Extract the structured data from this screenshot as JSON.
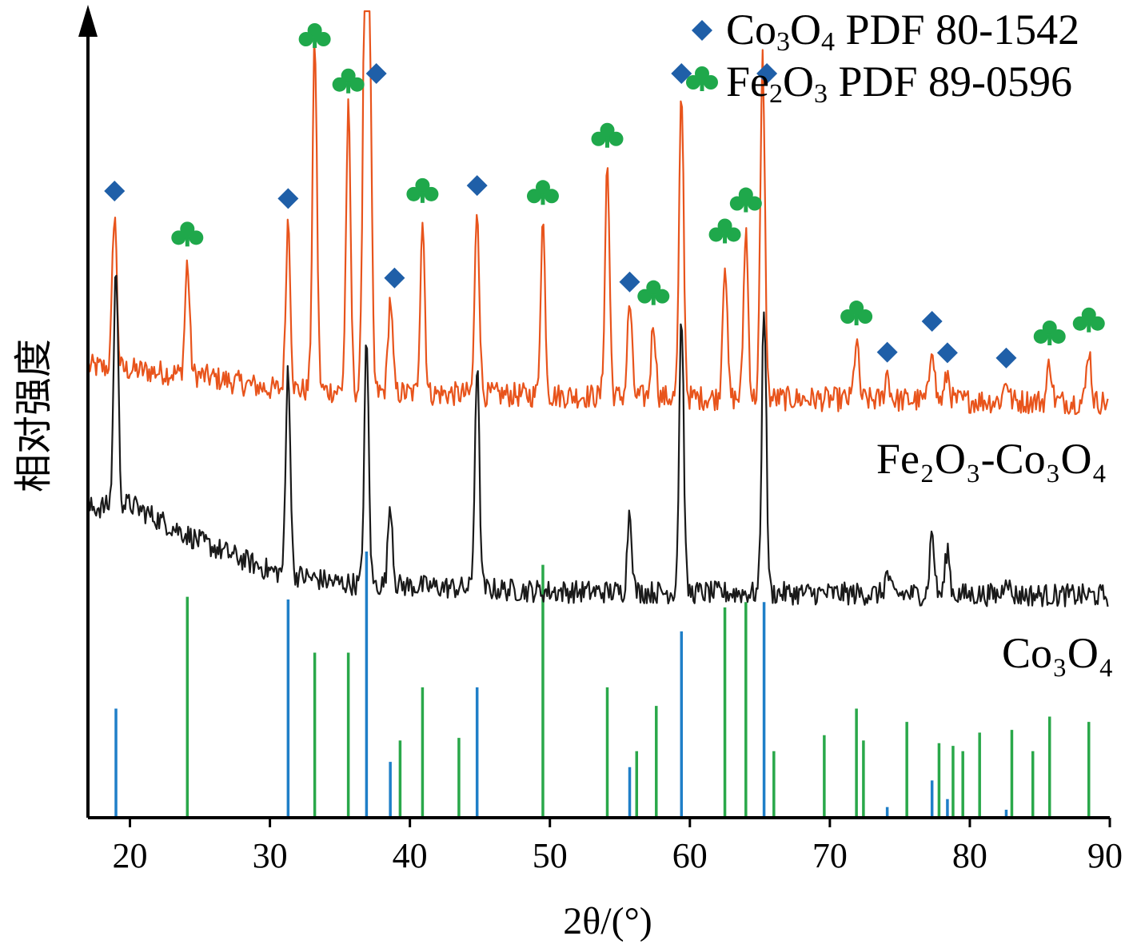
{
  "chart_data": {
    "type": "line",
    "xlabel": "2θ/(°)",
    "ylabel": "相对强度",
    "xlim": [
      17,
      90
    ],
    "xticks": [
      20,
      30,
      40,
      50,
      60,
      70,
      80,
      90
    ],
    "grid": false,
    "legend_position": "top-right",
    "legend": [
      {
        "marker": "diamond",
        "color": "#1f5fa8",
        "name": "Co3O4 PDF 80-1542"
      },
      {
        "marker": "club",
        "color": "#1fa84b",
        "name": "Fe2O3 PDF 89-0596"
      }
    ],
    "series": [
      {
        "name": "Fe2O3-Co3O4",
        "color": "#e8541c",
        "baseline": 0.3,
        "background": [
          [
            17,
            0.36
          ],
          [
            25,
            0.34
          ],
          [
            30,
            0.31
          ],
          [
            40,
            0.3
          ],
          [
            60,
            0.29
          ],
          [
            90,
            0.28
          ]
        ],
        "peaks": [
          [
            18.9,
            0.35
          ],
          [
            24.1,
            0.25
          ],
          [
            31.3,
            0.38
          ],
          [
            33.2,
            0.78
          ],
          [
            35.6,
            0.63
          ],
          [
            36.8,
            1.0
          ],
          [
            37.1,
            0.8
          ],
          [
            38.6,
            0.21
          ],
          [
            40.9,
            0.39
          ],
          [
            44.8,
            0.42
          ],
          [
            49.5,
            0.39
          ],
          [
            54.1,
            0.52
          ],
          [
            55.7,
            0.21
          ],
          [
            57.4,
            0.17
          ],
          [
            59.4,
            0.68
          ],
          [
            62.5,
            0.31
          ],
          [
            64.0,
            0.38
          ],
          [
            65.2,
            0.76
          ],
          [
            71.9,
            0.13
          ],
          [
            74.1,
            0.06
          ],
          [
            77.3,
            0.13
          ],
          [
            78.4,
            0.06
          ],
          [
            82.6,
            0.05
          ],
          [
            85.7,
            0.09
          ],
          [
            88.5,
            0.12
          ]
        ],
        "label": "Fe₂O₃-Co₃O₄"
      },
      {
        "name": "Co3O4",
        "color": "#1a1a1a",
        "baseline": 0.0,
        "background": [
          [
            17,
            0.2
          ],
          [
            20,
            0.21
          ],
          [
            25,
            0.12
          ],
          [
            30,
            0.05
          ],
          [
            35,
            0.02
          ],
          [
            50,
            0.0
          ],
          [
            90,
            -0.01
          ]
        ],
        "peaks": [
          [
            19.0,
            0.58
          ],
          [
            31.3,
            0.5
          ],
          [
            36.9,
            0.58
          ],
          [
            38.6,
            0.2
          ],
          [
            44.8,
            0.54
          ],
          [
            55.7,
            0.2
          ],
          [
            59.4,
            0.67
          ],
          [
            65.3,
            0.7
          ],
          [
            74.1,
            0.05
          ],
          [
            77.3,
            0.15
          ],
          [
            78.4,
            0.11
          ],
          [
            82.6,
            0.05
          ]
        ],
        "label": "Co₃O₄"
      }
    ],
    "reference": {
      "Co3O4_PDF_80-1542": {
        "color": "#1f7fc8",
        "lines": [
          [
            19.0,
            0.41
          ],
          [
            31.3,
            0.82
          ],
          [
            36.9,
            1.0
          ],
          [
            38.6,
            0.21
          ],
          [
            44.8,
            0.49
          ],
          [
            55.7,
            0.19
          ],
          [
            59.4,
            0.7
          ],
          [
            65.3,
            0.81
          ],
          [
            74.1,
            0.04
          ],
          [
            77.3,
            0.14
          ],
          [
            78.4,
            0.07
          ],
          [
            82.6,
            0.03
          ]
        ]
      },
      "Fe2O3_PDF_89-0596": {
        "color": "#2aa84a",
        "lines": [
          [
            24.1,
            0.83
          ],
          [
            33.2,
            0.62
          ],
          [
            35.6,
            0.62
          ],
          [
            39.3,
            0.29
          ],
          [
            40.9,
            0.49
          ],
          [
            43.5,
            0.3
          ],
          [
            49.5,
            0.95
          ],
          [
            54.1,
            0.49
          ],
          [
            56.2,
            0.25
          ],
          [
            57.6,
            0.42
          ],
          [
            62.5,
            0.79
          ],
          [
            64.0,
            0.81
          ],
          [
            66.0,
            0.25
          ],
          [
            69.6,
            0.31
          ],
          [
            71.9,
            0.41
          ],
          [
            72.4,
            0.29
          ],
          [
            75.5,
            0.36
          ],
          [
            77.8,
            0.28
          ],
          [
            78.8,
            0.27
          ],
          [
            79.5,
            0.25
          ],
          [
            80.7,
            0.32
          ],
          [
            83.0,
            0.33
          ],
          [
            84.5,
            0.25
          ],
          [
            85.7,
            0.38
          ],
          [
            88.5,
            0.36
          ]
        ]
      }
    },
    "markers": {
      "diamond": [
        18.9,
        31.3,
        37.6,
        38.9,
        44.8,
        55.7,
        59.4,
        65.5,
        74.1,
        77.3,
        78.4,
        82.6
      ],
      "club": [
        24.1,
        33.2,
        35.6,
        40.9,
        49.5,
        54.1,
        57.4,
        62.5,
        64.0,
        71.9,
        85.7,
        88.5
      ]
    }
  }
}
